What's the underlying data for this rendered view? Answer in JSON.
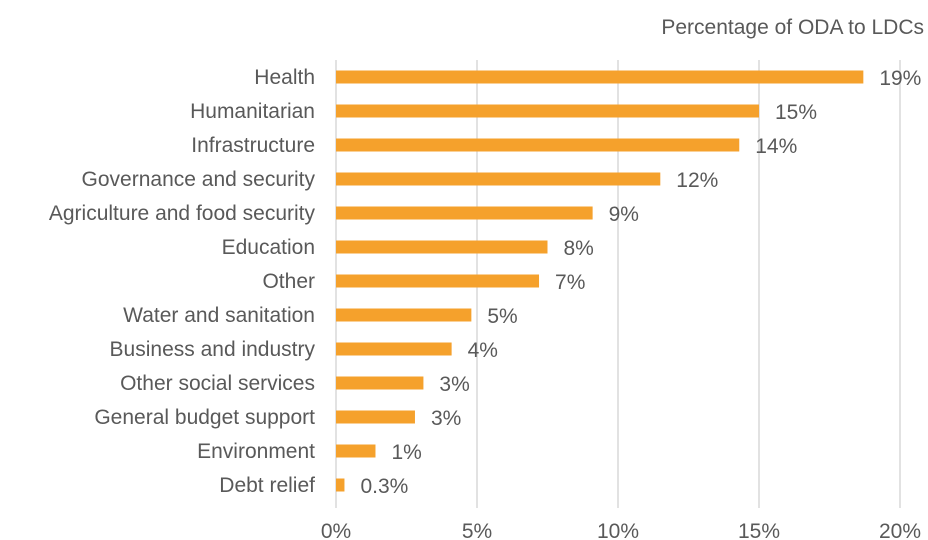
{
  "chart_data": {
    "type": "bar",
    "orientation": "horizontal",
    "xlabel": "Percentage of ODA to LDCs",
    "ylabel": "",
    "xlim": [
      0,
      20
    ],
    "x_ticks": [
      "0%",
      "5%",
      "10%",
      "15%",
      "20%"
    ],
    "x_tick_values": [
      0,
      5,
      10,
      15,
      20
    ],
    "grid": "vertical",
    "bar_color": "#f5a12c",
    "categories": [
      "Health",
      "Humanitarian",
      "Infrastructure",
      "Governance and security",
      "Agriculture and food security",
      "Education",
      "Other",
      "Water and sanitation",
      "Business and industry",
      "Other social services",
      "General budget support",
      "Environment",
      "Debt relief"
    ],
    "values": [
      18.7,
      15.0,
      14.3,
      11.5,
      9.1,
      7.5,
      7.2,
      4.8,
      4.1,
      3.1,
      2.8,
      1.4,
      0.3
    ],
    "labels": [
      "19%",
      "15%",
      "14%",
      "12%",
      "9%",
      "8%",
      "7%",
      "5%",
      "4%",
      "3%",
      "3%",
      "1%",
      "0.3%"
    ]
  }
}
